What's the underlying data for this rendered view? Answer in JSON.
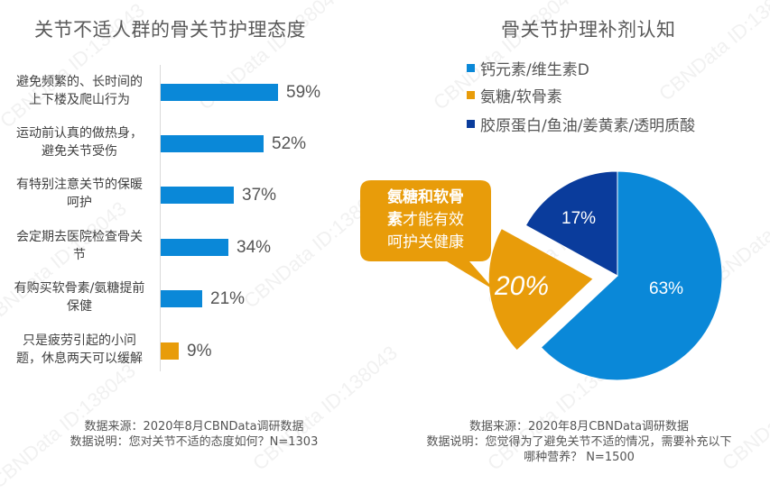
{
  "left_panel": {
    "title": "关节不适人群的骨关节护理态度",
    "note_source": "数据来源：2020年8月CBNData调研数据",
    "note_desc": "数据说明：您对关节不适的态度如何？N=1303"
  },
  "right_panel": {
    "title": "骨关节护理补剂认知",
    "legend": [
      {
        "label": "钙元素/维生素D",
        "color": "#0a88d8"
      },
      {
        "label": "氨糖/软骨素",
        "color": "#e89c0a"
      },
      {
        "label": "胶原蛋白/鱼油/姜黄素/透明质酸",
        "color": "#0a3c9c"
      }
    ],
    "callout": {
      "bold": "氨糖和软骨素",
      "rest": "才能有效呵护关健康",
      "line1": "氨糖和软骨",
      "line2_bold": "素",
      "line2_rest": "才能有效",
      "line3": "呵护关健康"
    },
    "note_source": "数据来源：2020年8月CBNData调研数据",
    "note_desc_line1": "数据说明：您觉得为了避免关节不适的情况，需要补充以下",
    "note_desc_line2": "哪种营养？ N=1500"
  },
  "watermark": "CBNData ID:138043",
  "colors": {
    "blue": "#0a88d8",
    "gold": "#e89c0a",
    "navy": "#0a3c9c"
  },
  "chart_data": [
    {
      "type": "bar",
      "orientation": "horizontal",
      "title": "关节不适人群的骨关节护理态度",
      "categories": [
        "避免频繁的、长时间的上下楼及爬山行为",
        "运动前认真的做热身，避免关节受伤",
        "有特别注意关节的保暖呵护",
        "会定期去医院检查骨关节",
        "有购买软骨素/氨糖提前保健",
        "只是疲劳引起的小问题，休息两天可以缓解"
      ],
      "category_lines": [
        [
          "避免频繁的、长时间的",
          "上下楼及爬山行为"
        ],
        [
          "运动前认真的做热身，",
          "避免关节受伤"
        ],
        [
          "有特别注意关节的保暖",
          "呵护"
        ],
        [
          "会定期去医院检查骨关",
          "节"
        ],
        [
          "有购买软骨素/氨糖提前",
          "保健"
        ],
        [
          "只是疲劳引起的小问",
          "题，休息两天可以缓解"
        ]
      ],
      "values": [
        59,
        52,
        37,
        34,
        21,
        9
      ],
      "value_labels": [
        "59%",
        "52%",
        "37%",
        "34%",
        "21%",
        "9%"
      ],
      "bar_colors": [
        "#0a88d8",
        "#0a88d8",
        "#0a88d8",
        "#0a88d8",
        "#0a88d8",
        "#e89c0a"
      ],
      "unit": "%",
      "xlabel": "",
      "ylabel": "",
      "grid": false,
      "source": "数据来源：2020年8月CBNData调研数据",
      "note": "数据说明：您对关节不适的态度如何？N=1303"
    },
    {
      "type": "pie",
      "title": "骨关节护理补剂认知",
      "categories": [
        "钙元素/维生素D",
        "氨糖/软骨素",
        "胶原蛋白/鱼油/姜黄素/透明质酸"
      ],
      "values": [
        63,
        20,
        17
      ],
      "value_labels": [
        "63%",
        "20%",
        "17%"
      ],
      "colors": [
        "#0a88d8",
        "#e89c0a",
        "#0a3c9c"
      ],
      "exploded": [
        false,
        true,
        false
      ],
      "start_angle": "12 o'clock, clockwise",
      "legend_position": "top",
      "annotation": "氨糖和软骨素才能有效呵护关健康",
      "source": "数据来源：2020年8月CBNData调研数据",
      "note": "数据说明：您觉得为了避免关节不适的情况，需要补充以下哪种营养？ N=1500"
    }
  ]
}
